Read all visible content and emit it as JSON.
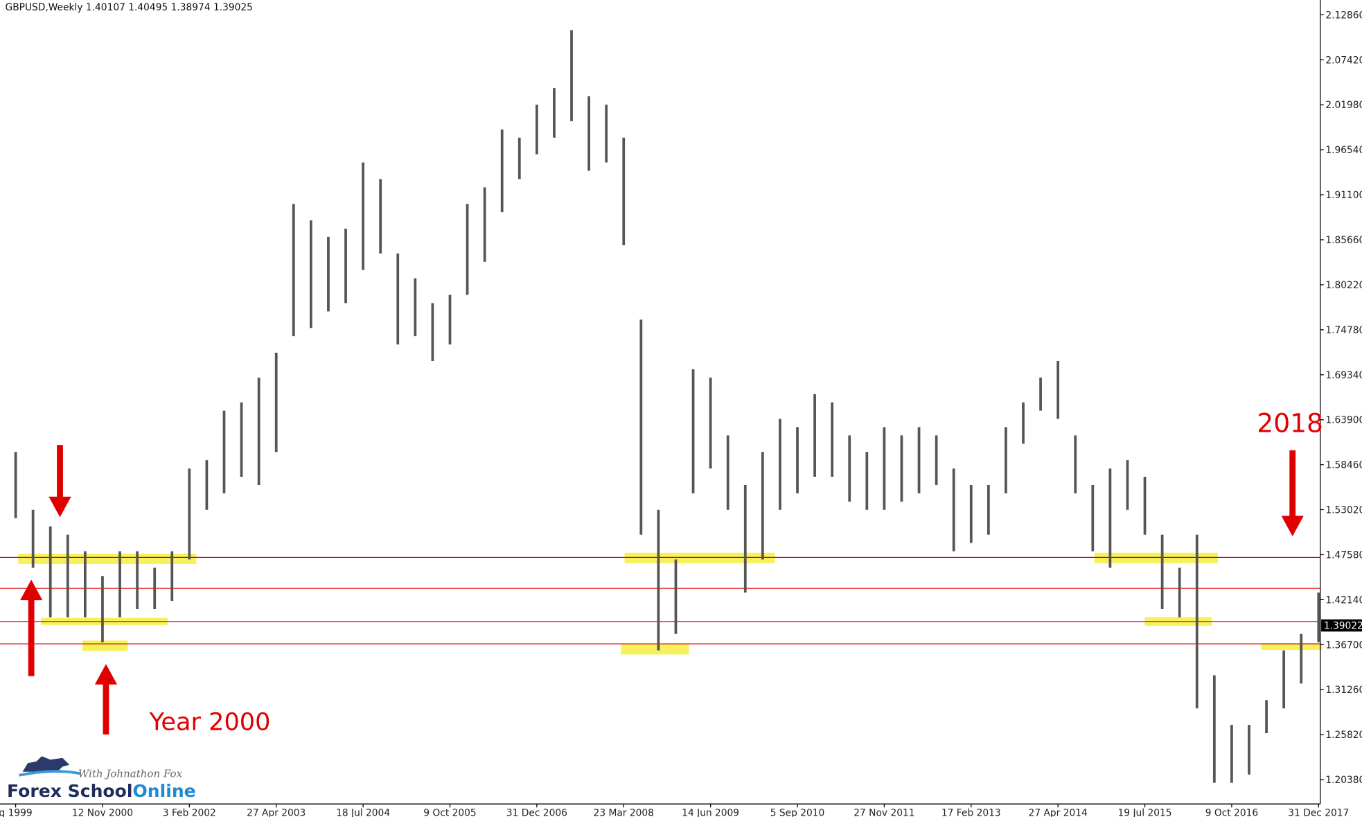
{
  "chart_data": {
    "type": "range",
    "title": "GBPUSD,Weekly  1.40107 1.40495 1.38974 1.39025",
    "categories": [
      "g 1999",
      null,
      null,
      null,
      null,
      "12 Nov 2000",
      null,
      null,
      null,
      null,
      "3 Feb 2002",
      null,
      null,
      null,
      null,
      "27 Apr 2003",
      null,
      null,
      null,
      null,
      "18 Jul 2004",
      null,
      null,
      null,
      null,
      "9 Oct 2005",
      null,
      null,
      null,
      null,
      "31 Dec 2006",
      null,
      null,
      null,
      null,
      "23 Mar 2008",
      null,
      null,
      null,
      null,
      "14 Jun 2009",
      null,
      null,
      null,
      null,
      "5 Sep 2010",
      null,
      null,
      null,
      null,
      "27 Nov 2011",
      null,
      null,
      null,
      null,
      "17 Feb 2013",
      null,
      null,
      null,
      null,
      "27 Apr 2014",
      null,
      null,
      null,
      null,
      "19 Jul 2015",
      null,
      null,
      null,
      null,
      "9 Oct 2016",
      null,
      null,
      null,
      null,
      "31 Dec 2017"
    ],
    "series": [
      {
        "color": "#555555",
        "high": [
          1.6,
          1.53,
          1.51,
          1.5,
          1.48,
          1.45,
          1.48,
          1.48,
          1.46,
          1.48,
          1.58,
          1.59,
          1.65,
          1.66,
          1.69,
          1.72,
          1.9,
          1.88,
          1.86,
          1.87,
          1.95,
          1.93,
          1.84,
          1.81,
          1.78,
          1.79,
          1.9,
          1.92,
          1.99,
          1.98,
          2.02,
          2.04,
          2.11,
          2.03,
          2.02,
          1.98,
          1.76,
          1.53,
          1.47,
          1.7,
          1.69,
          1.62,
          1.56,
          1.6,
          1.64,
          1.63,
          1.67,
          1.66,
          1.62,
          1.6,
          1.63,
          1.62,
          1.63,
          1.62,
          1.58,
          1.56,
          1.56,
          1.63,
          1.66,
          1.69,
          1.71,
          1.62,
          1.56,
          1.58,
          1.59,
          1.57,
          1.5,
          1.46,
          1.5,
          1.33,
          1.27,
          1.27,
          1.3,
          1.36,
          1.38,
          1.43
        ],
        "low": [
          1.52,
          1.46,
          1.4,
          1.4,
          1.4,
          1.37,
          1.4,
          1.41,
          1.41,
          1.42,
          1.47,
          1.53,
          1.55,
          1.57,
          1.56,
          1.6,
          1.74,
          1.75,
          1.77,
          1.78,
          1.82,
          1.84,
          1.73,
          1.74,
          1.71,
          1.73,
          1.79,
          1.83,
          1.89,
          1.93,
          1.96,
          1.98,
          2.0,
          1.94,
          1.95,
          1.85,
          1.5,
          1.36,
          1.38,
          1.55,
          1.58,
          1.53,
          1.43,
          1.47,
          1.53,
          1.55,
          1.57,
          1.57,
          1.54,
          1.53,
          1.53,
          1.54,
          1.55,
          1.56,
          1.48,
          1.49,
          1.5,
          1.55,
          1.61,
          1.65,
          1.64,
          1.55,
          1.48,
          1.46,
          1.53,
          1.5,
          1.41,
          1.4,
          1.29,
          1.2,
          1.2,
          1.21,
          1.26,
          1.29,
          1.32,
          1.37
        ]
      }
    ],
    "levels": {
      "color": "#e00000",
      "values": [
        1.4725,
        1.435,
        1.395,
        1.368
      ]
    },
    "current_price": 1.39022,
    "ylim": [
      1.1744,
      2.1465
    ],
    "yticks": [
      {
        "value": 2.1286,
        "label": "2.12860"
      },
      {
        "value": 2.0742,
        "label": "2.07420"
      },
      {
        "value": 2.0198,
        "label": "2.01980"
      },
      {
        "value": 1.9654,
        "label": "1.96540"
      },
      {
        "value": 1.911,
        "label": "1.91100"
      },
      {
        "value": 1.8566,
        "label": "1.85660"
      },
      {
        "value": 1.8022,
        "label": "1.80220"
      },
      {
        "value": 1.7478,
        "label": "1.74780"
      },
      {
        "value": 1.6934,
        "label": "1.69340"
      },
      {
        "value": 1.639,
        "label": "1.63900"
      },
      {
        "value": 1.5846,
        "label": "1.58460"
      },
      {
        "value": 1.5302,
        "label": "1.53020"
      },
      {
        "value": 1.4758,
        "label": "1.47580"
      },
      {
        "value": 1.4214,
        "label": "1.42140"
      },
      {
        "value": 1.367,
        "label": "1.36700"
      },
      {
        "value": 1.3126,
        "label": "1.31260"
      },
      {
        "value": 1.2582,
        "label": "1.25820"
      },
      {
        "value": 1.2038,
        "label": "1.20380"
      }
    ],
    "annotations": [
      "Year 2000",
      "2018"
    ]
  },
  "logo": {
    "tagline": "With Johnathon Fox",
    "brand": "Forex School",
    "brand_accent": "Online"
  }
}
